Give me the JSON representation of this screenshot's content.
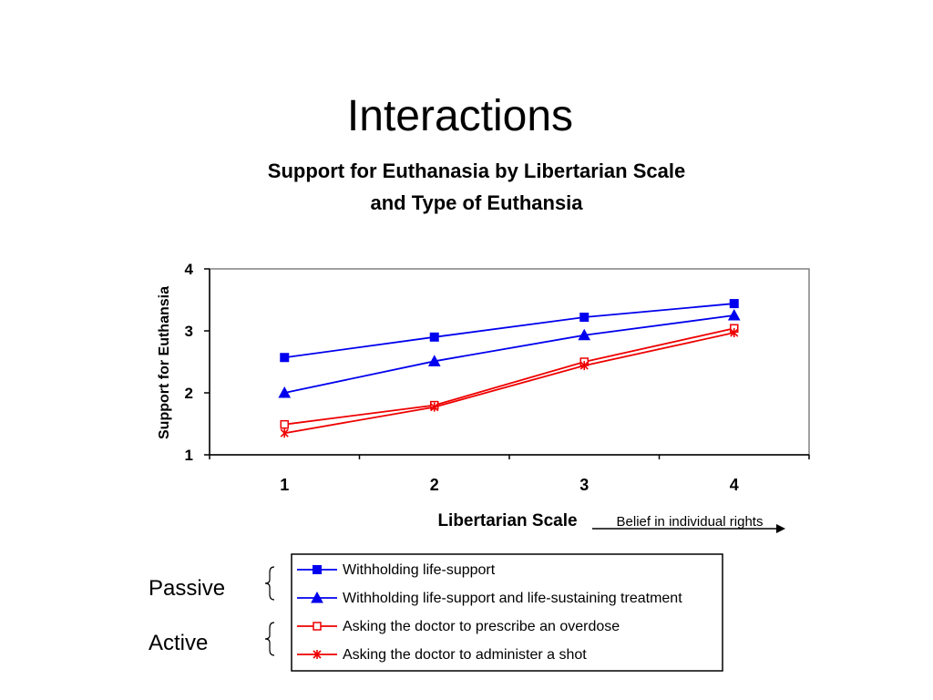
{
  "slide": {
    "title": "Interactions",
    "groups": [
      "Passive",
      "Active"
    ]
  },
  "chart_data": {
    "type": "line",
    "title_lines": [
      "Support for Euthanasia by Libertarian Scale",
      "and Type of Euthansia"
    ],
    "xlabel": "Libertarian Scale",
    "ylabel": "Support for Euthansia",
    "x_annotation": "Belief in individual rights",
    "categories": [
      "1",
      "2",
      "3",
      "4"
    ],
    "ylim": [
      1,
      4
    ],
    "yticks": [
      "1",
      "2",
      "3",
      "4"
    ],
    "legend_position": "bottom",
    "series": [
      {
        "name": "Withholding life-support",
        "values": [
          2.57,
          2.9,
          3.22,
          3.44
        ],
        "color": "#0000ee",
        "marker": "square-filled"
      },
      {
        "name": "Withholding life-support and life-sustaining treatment",
        "values": [
          2.0,
          2.51,
          2.93,
          3.25
        ],
        "color": "#0000ee",
        "marker": "triangle-filled"
      },
      {
        "name": "Asking the doctor to prescribe an overdose",
        "values": [
          1.49,
          1.8,
          2.5,
          3.04
        ],
        "color": "#ee0000",
        "marker": "square-open"
      },
      {
        "name": "Asking the doctor to administer a shot",
        "values": [
          1.35,
          1.77,
          2.44,
          2.97
        ],
        "color": "#ee0000",
        "marker": "star"
      }
    ]
  }
}
